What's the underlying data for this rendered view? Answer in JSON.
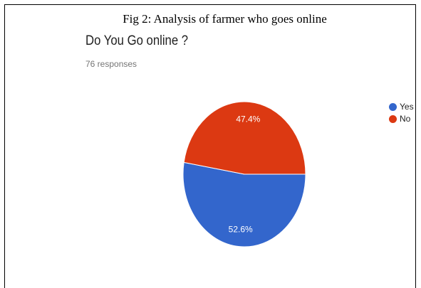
{
  "caption": "Fig 2: Analysis of farmer who goes online",
  "question": "Do You Go online ?",
  "responses": "76 responses",
  "chart_data": {
    "type": "pie",
    "title": "Do You Go online ?",
    "subtitle": "76 responses",
    "legend_position": "right",
    "slices": [
      {
        "label": "Yes",
        "value": 52.6,
        "label_text": "52.6%",
        "color": "#3366cc"
      },
      {
        "label": "No",
        "value": 47.4,
        "label_text": "47.4%",
        "color": "#dc3912"
      }
    ]
  }
}
